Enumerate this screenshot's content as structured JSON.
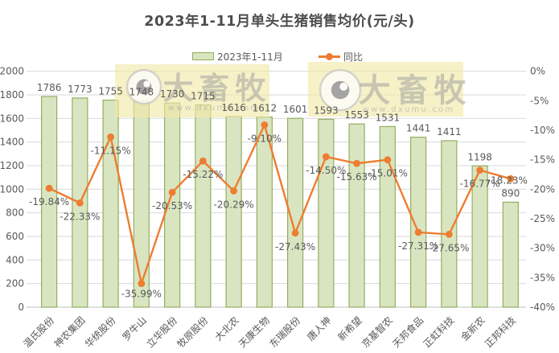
{
  "title": "2023年1-11月单头生猪销售均价(元/头)",
  "watermark": {
    "brand": "大畜牧",
    "url": "www.dxumu.com"
  },
  "colors": {
    "bar_fill": "#d9e5c1",
    "bar_border": "#94ad60",
    "line": "#ed7d31",
    "text": "#595959",
    "grid": "#d9d9d9",
    "axis": "#bfbfbf",
    "watermark_bg": "#f1e9a4",
    "watermark_text": "#9c9c9c",
    "title_text": "#4d4d4d"
  },
  "chart_data": {
    "type": "bar",
    "subtype": "bar+line combo, dual axis",
    "title": "2023年1-11月单头生猪销售均价(元/头)",
    "grid": "horizontal",
    "legend_position": "top",
    "categories": [
      "温氏股份",
      "神农集团",
      "华统股份",
      "罗牛山",
      "立华股份",
      "牧原股份",
      "大北农",
      "天康生物",
      "东瑞股份",
      "唐人神",
      "新希望",
      "京基智农",
      "天邦食品",
      "正虹科技",
      "金新农",
      "正邦科技"
    ],
    "series": [
      {
        "name": "2023年1-11月",
        "type": "bar",
        "axis": "left",
        "values": [
          1786,
          1773,
          1755,
          1748,
          1730,
          1715,
          1616,
          1612,
          1601,
          1593,
          1553,
          1531,
          1441,
          1411,
          1198,
          890
        ]
      },
      {
        "name": "同比",
        "type": "line",
        "axis": "right",
        "values": [
          -19.84,
          -22.33,
          -11.15,
          -35.99,
          -20.53,
          -15.22,
          -20.29,
          -9.1,
          -27.43,
          -14.5,
          -15.63,
          -15.01,
          -27.31,
          -27.65,
          -16.77,
          -18.23
        ],
        "labels": [
          "-19.84%",
          "-22.33%",
          "-11.15%",
          "-35.99%",
          "-20.53%",
          "-15.22%",
          "-20.29%",
          "-9.10%",
          "-27.43%",
          "-14.50%",
          "-15.63%",
          "-15.01%",
          "-27.31%",
          "-27.65%",
          "-16.77%",
          "-18.23%"
        ]
      }
    ],
    "left_axis": {
      "min": 0,
      "max": 2000,
      "step": 200,
      "ticks": [
        "0",
        "200",
        "400",
        "600",
        "800",
        "1000",
        "1200",
        "1400",
        "1600",
        "1800",
        "2000"
      ]
    },
    "right_axis": {
      "min": -40,
      "max": 0,
      "step": 5,
      "ticks": [
        "0%",
        "-5%",
        "-10%",
        "-15%",
        "-20%",
        "-25%",
        "-30%",
        "-35%",
        "-40%"
      ]
    }
  }
}
